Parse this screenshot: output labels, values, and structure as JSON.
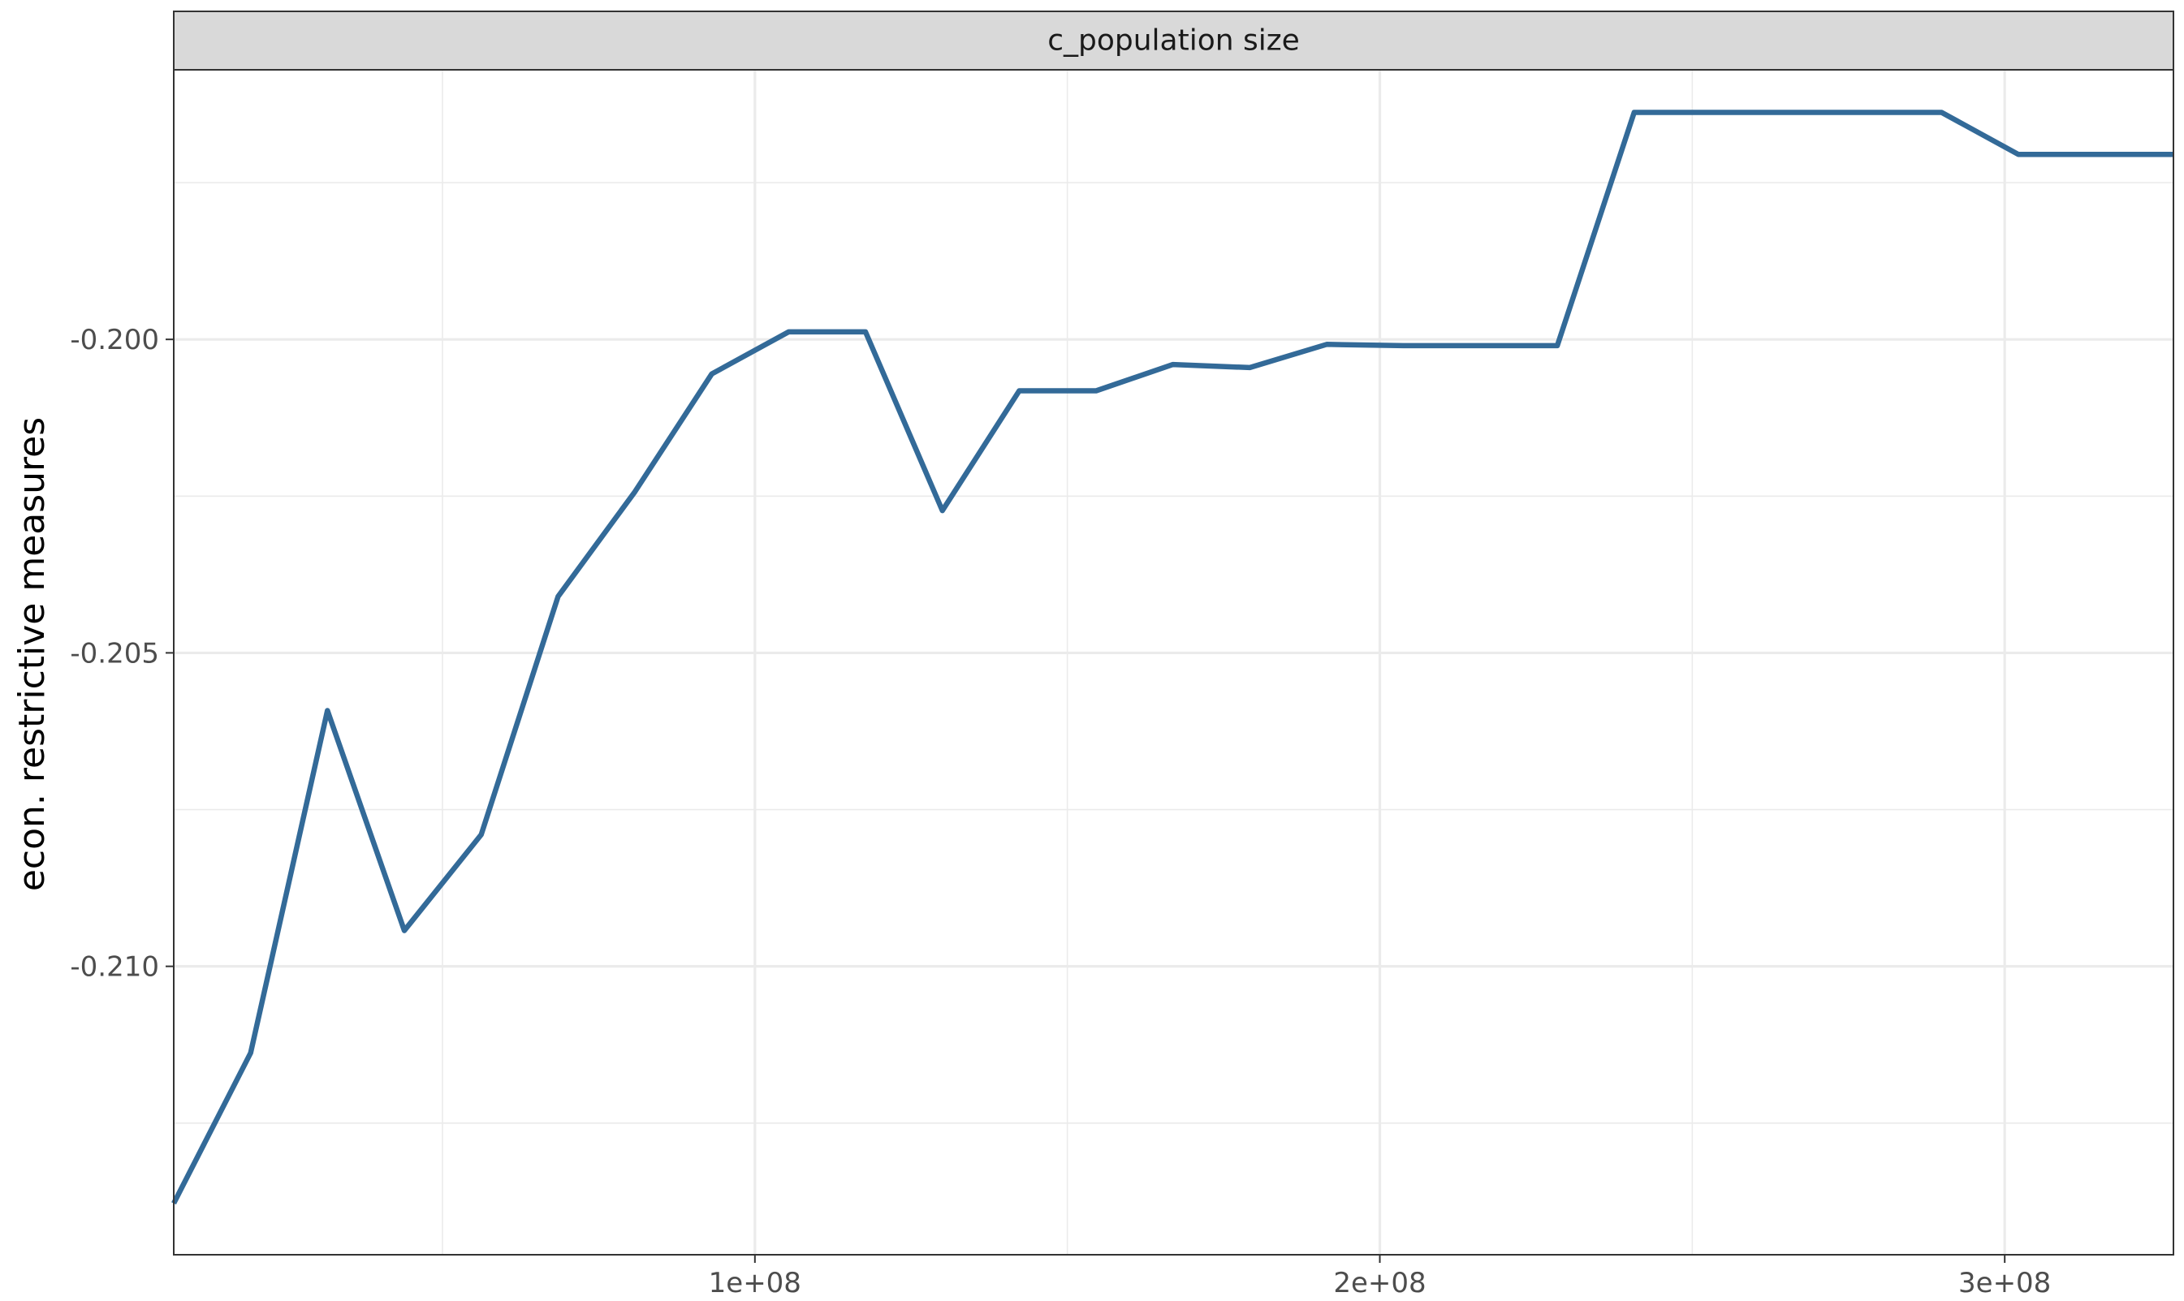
{
  "chart_data": {
    "type": "line",
    "facet_label": "c_population size",
    "title": "",
    "xlabel": "",
    "ylabel": "econ. restrictive measures",
    "xlim": [
      7000000,
      327000000
    ],
    "ylim": [
      -0.2146,
      -0.1957
    ],
    "x_ticks": [
      {
        "value": 100000000,
        "label": "1e+08"
      },
      {
        "value": 200000000,
        "label": "2e+08"
      },
      {
        "value": 300000000,
        "label": "3e+08"
      }
    ],
    "y_ticks": [
      {
        "value": -0.2,
        "label": "-0.200"
      },
      {
        "value": -0.205,
        "label": "-0.205"
      },
      {
        "value": -0.21,
        "label": "-0.210"
      }
    ],
    "grid": true,
    "line_color": "#336a98",
    "series": [
      {
        "x": [
          7000000,
          19300000,
          31600000,
          43900000,
          56200000,
          68500000,
          80800000,
          93100000,
          105400000,
          117700000,
          130000000,
          142300000,
          154600000,
          166900000,
          179200000,
          191500000,
          203800000,
          216100000,
          228400000,
          240700000,
          253000000,
          265300000,
          277600000,
          289900000,
          302200000,
          314500000,
          327000000
        ],
        "y": [
          -0.21378,
          -0.21138,
          -0.20592,
          -0.20943,
          -0.2079,
          -0.2041,
          -0.20243,
          -0.20055,
          -0.19988,
          -0.19988,
          -0.20273,
          -0.20082,
          -0.20082,
          -0.2004,
          -0.20045,
          -0.20008,
          -0.2001,
          -0.2001,
          -0.2001,
          -0.19638,
          -0.19638,
          -0.19638,
          -0.19638,
          -0.19638,
          -0.19705,
          -0.19705,
          -0.19705
        ]
      }
    ]
  }
}
